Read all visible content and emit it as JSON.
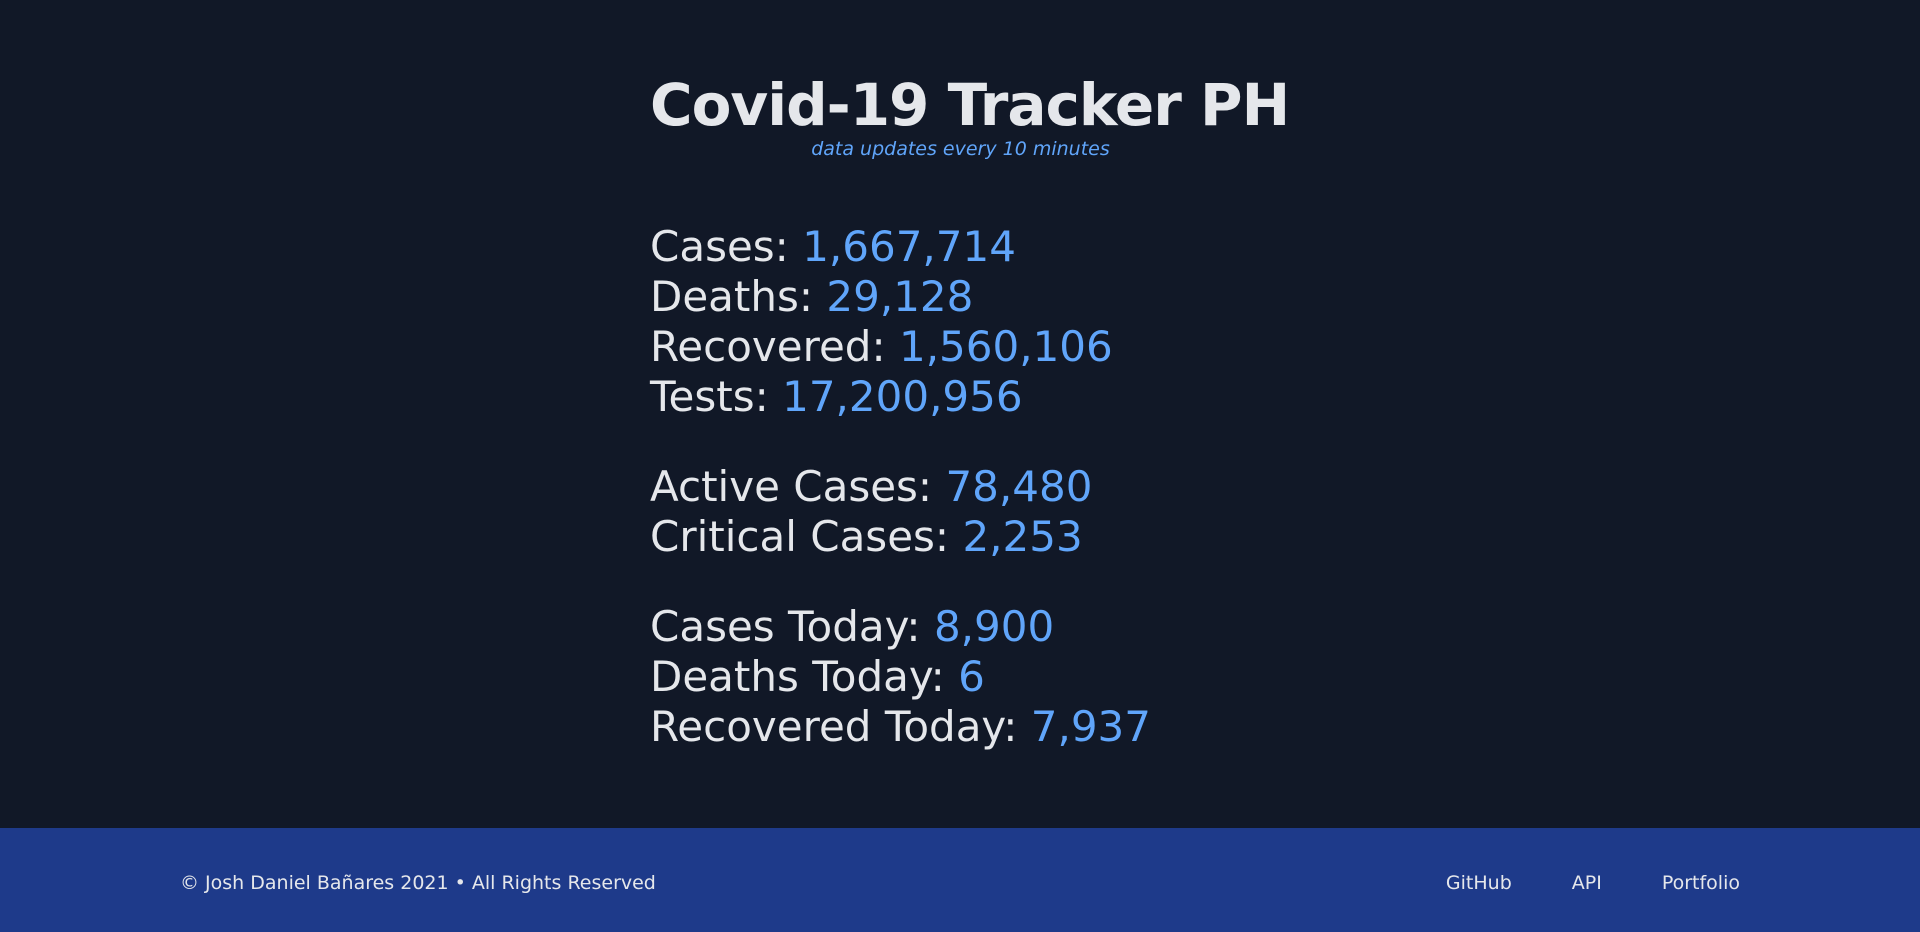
{
  "header": {
    "title": "Covid-19 Tracker PH",
    "subtitle": "data updates every 10 minutes"
  },
  "stats": {
    "overall": [
      {
        "label": "Cases:",
        "value": "1,667,714"
      },
      {
        "label": "Deaths:",
        "value": "29,128"
      },
      {
        "label": "Recovered:",
        "value": "1,560,106"
      },
      {
        "label": "Tests:",
        "value": "17,200,956"
      }
    ],
    "active": [
      {
        "label": "Active Cases:",
        "value": "78,480"
      },
      {
        "label": "Critical Cases:",
        "value": "2,253"
      }
    ],
    "today": [
      {
        "label": "Cases Today:",
        "value": "8,900"
      },
      {
        "label": "Deaths Today:",
        "value": "6"
      },
      {
        "label": "Recovered Today:",
        "value": "7,937"
      }
    ]
  },
  "footer": {
    "copyright": "© Josh Daniel Bañares 2021 • All Rights Reserved",
    "links": [
      {
        "label": "GitHub"
      },
      {
        "label": "API"
      },
      {
        "label": "Portfolio"
      }
    ]
  },
  "colors": {
    "background": "#111827",
    "footer_background": "#1e3a8a",
    "text": "#e5e7eb",
    "accent": "#60a5fa"
  }
}
